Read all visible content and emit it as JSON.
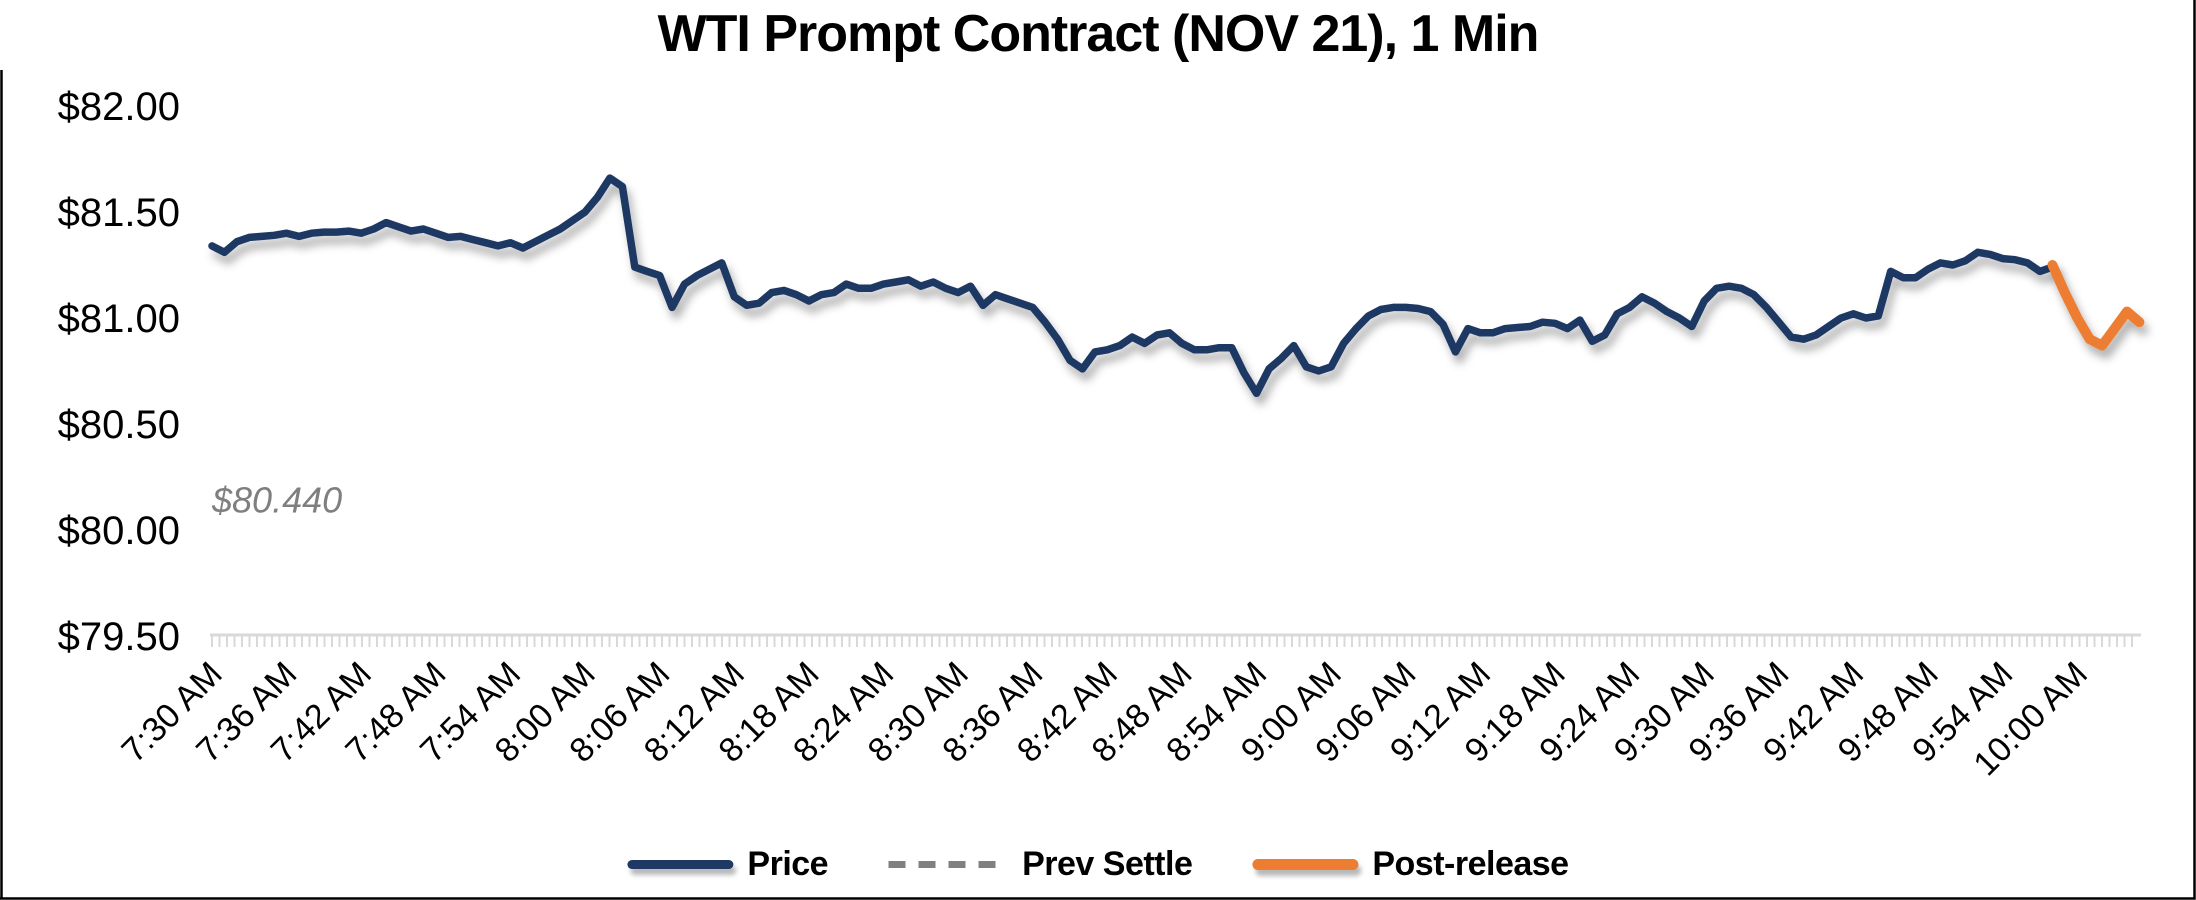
{
  "chart": {
    "title": "WTI Prompt Contract (NOV 21), 1 Min"
  },
  "annotation": {
    "prev_settle_label": "$80.440"
  },
  "legend": {
    "items": [
      {
        "label": "Price",
        "type": "solid-line",
        "color": "#1F3864"
      },
      {
        "label": "Prev Settle",
        "type": "dashed-line",
        "color": "#808080"
      },
      {
        "label": "Post-release",
        "type": "solid-line",
        "color": "#ED7D31"
      }
    ]
  },
  "colors": {
    "price": "#1F3864",
    "post_release": "#ED7D31",
    "prev_settle": "#808080",
    "axis": "#D9D9D9",
    "annotation_text": "#7F7F7F",
    "text": "#000000"
  },
  "chart_data": {
    "type": "line",
    "title": "WTI Prompt Contract (NOV 21), 1 Min",
    "xlabel": "",
    "ylabel": "",
    "x_start": "7:30 AM",
    "x_interval_minutes": 1,
    "x_label_every_minutes": 6,
    "x_label_rotation_degrees": 45,
    "x_tick_labels": [
      "7:30 AM",
      "7:36 AM",
      "7:42 AM",
      "7:48 AM",
      "7:54 AM",
      "8:00 AM",
      "8:06 AM",
      "8:12 AM",
      "8:18 AM",
      "8:24 AM",
      "8:30 AM",
      "8:36 AM",
      "8:42 AM",
      "8:48 AM",
      "8:54 AM",
      "9:00 AM",
      "9:06 AM",
      "9:12 AM",
      "9:18 AM",
      "9:24 AM",
      "9:30 AM",
      "9:36 AM",
      "9:42 AM",
      "9:48 AM",
      "9:54 AM",
      "10:00 AM"
    ],
    "y_ticks": [
      {
        "label": "$82.00",
        "value": 82.0
      },
      {
        "label": "$81.50",
        "value": 81.5
      },
      {
        "label": "$81.00",
        "value": 81.0
      },
      {
        "label": "$80.50",
        "value": 80.5
      },
      {
        "label": "$80.00",
        "value": 80.0
      },
      {
        "label": "$79.50",
        "value": 79.5
      }
    ],
    "ylim": [
      79.5,
      82.0
    ],
    "grid": false,
    "legend_position": "bottom",
    "prev_settle": {
      "value": 80.44,
      "label": "$80.440"
    },
    "series": [
      {
        "name": "Price",
        "type": "line",
        "color": "#1F3864",
        "start_index": 0,
        "values": [
          81.34,
          81.31,
          81.36,
          81.38,
          81.385,
          81.39,
          81.4,
          81.385,
          81.4,
          81.405,
          81.405,
          81.41,
          81.4,
          81.42,
          81.45,
          81.43,
          81.41,
          81.42,
          81.4,
          81.38,
          81.385,
          81.37,
          81.355,
          81.34,
          81.355,
          81.33,
          81.36,
          81.39,
          81.42,
          81.46,
          81.5,
          81.57,
          81.66,
          81.62,
          81.24,
          81.22,
          81.2,
          81.05,
          81.16,
          81.2,
          81.23,
          81.26,
          81.1,
          81.06,
          81.07,
          81.12,
          81.13,
          81.11,
          81.08,
          81.11,
          81.12,
          81.16,
          81.14,
          81.14,
          81.16,
          81.17,
          81.18,
          81.15,
          81.17,
          81.14,
          81.12,
          81.15,
          81.06,
          81.11,
          81.09,
          81.07,
          81.05,
          80.98,
          80.9,
          80.8,
          80.76,
          80.84,
          80.85,
          80.87,
          80.91,
          80.88,
          80.92,
          80.93,
          80.88,
          80.85,
          80.85,
          80.86,
          80.86,
          80.74,
          80.645,
          80.76,
          80.81,
          80.87,
          80.77,
          80.75,
          80.77,
          80.88,
          80.95,
          81.01,
          81.04,
          81.05,
          81.05,
          81.045,
          81.03,
          80.97,
          80.84,
          80.95,
          80.93,
          80.93,
          80.95,
          80.955,
          80.96,
          80.98,
          80.975,
          80.95,
          80.99,
          80.89,
          80.92,
          81.02,
          81.05,
          81.1,
          81.07,
          81.03,
          81.0,
          80.96,
          81.08,
          81.14,
          81.15,
          81.14,
          81.11,
          81.05,
          80.98,
          80.91,
          80.9,
          80.92,
          80.96,
          81.0,
          81.02,
          81.0,
          81.01,
          81.22,
          81.19,
          81.19,
          81.23,
          81.26,
          81.25,
          81.27,
          81.31,
          81.3,
          81.28,
          81.275,
          81.26,
          81.22,
          81.24
        ]
      },
      {
        "name": "Prev Settle",
        "type": "hline",
        "dashed": true,
        "color": "#808080",
        "value": 80.44
      },
      {
        "name": "Post-release",
        "type": "line",
        "color": "#ED7D31",
        "start_index": 148,
        "values": [
          81.25,
          81.12,
          81.0,
          80.9,
          80.87,
          80.95,
          81.03,
          80.98
        ]
      }
    ]
  }
}
